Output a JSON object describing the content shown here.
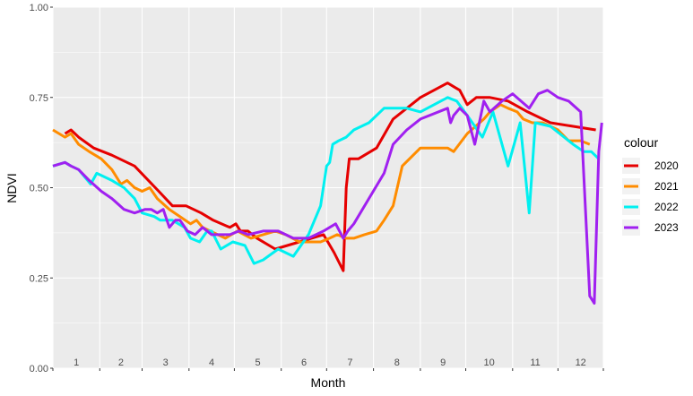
{
  "chart_data": {
    "type": "line",
    "xlabel": "Month",
    "ylabel": "NDVI",
    "xlim": [
      1,
      365
    ],
    "ylim": [
      0,
      1
    ],
    "yticks": [
      0.0,
      0.25,
      0.5,
      0.75,
      1.0
    ],
    "ytick_labels": [
      "0.00",
      "0.25",
      "0.50",
      "0.75",
      "1.00"
    ],
    "month_labels": [
      "1",
      "2",
      "3",
      "4",
      "5",
      "6",
      "7",
      "8",
      "9",
      "10",
      "11",
      "12"
    ],
    "legend_title": "colour",
    "legend_position": "right",
    "grid": true,
    "series": [
      {
        "name": "2020",
        "color": "#e60000",
        "x": [
          9,
          13,
          18,
          28,
          40,
          55,
          71,
          80,
          89,
          99,
          107,
          118,
          122,
          125,
          130,
          136,
          148,
          164,
          172,
          180,
          187,
          193,
          195,
          197,
          203,
          215,
          226,
          244,
          262,
          266,
          270,
          275,
          281,
          290,
          302,
          315,
          330,
          345,
          360
        ],
        "y": [
          0.65,
          0.66,
          0.64,
          0.61,
          0.59,
          0.56,
          0.49,
          0.45,
          0.45,
          0.43,
          0.41,
          0.39,
          0.4,
          0.38,
          0.38,
          0.36,
          0.33,
          0.35,
          0.36,
          0.37,
          0.32,
          0.27,
          0.5,
          0.58,
          0.58,
          0.61,
          0.69,
          0.75,
          0.79,
          0.78,
          0.77,
          0.73,
          0.75,
          0.75,
          0.74,
          0.71,
          0.68,
          0.67,
          0.66
        ]
      },
      {
        "name": "2021",
        "color": "#ff8c00",
        "x": [
          1,
          9,
          13,
          18,
          25,
          33,
          40,
          46,
          50,
          55,
          60,
          65,
          70,
          78,
          85,
          92,
          96,
          100,
          105,
          110,
          115,
          123,
          132,
          140,
          148,
          155,
          164,
          172,
          178,
          184,
          189,
          195,
          200,
          207,
          215,
          220,
          226,
          232,
          244,
          262,
          266,
          275,
          286,
          290,
          297,
          302,
          308,
          312,
          318,
          325,
          335,
          342,
          350,
          356
        ],
        "y": [
          0.66,
          0.64,
          0.65,
          0.62,
          0.6,
          0.58,
          0.55,
          0.51,
          0.52,
          0.5,
          0.49,
          0.5,
          0.47,
          0.44,
          0.42,
          0.4,
          0.41,
          0.39,
          0.38,
          0.37,
          0.36,
          0.38,
          0.36,
          0.37,
          0.38,
          0.37,
          0.35,
          0.35,
          0.35,
          0.36,
          0.37,
          0.36,
          0.36,
          0.37,
          0.38,
          0.41,
          0.45,
          0.56,
          0.61,
          0.61,
          0.6,
          0.65,
          0.69,
          0.71,
          0.73,
          0.72,
          0.71,
          0.69,
          0.68,
          0.68,
          0.66,
          0.63,
          0.63,
          0.62
        ]
      },
      {
        "name": "2022",
        "color": "#00f0f0",
        "x": [
          1,
          9,
          13,
          18,
          22,
          26,
          30,
          40,
          48,
          55,
          60,
          68,
          72,
          80,
          88,
          92,
          98,
          103,
          106,
          112,
          120,
          128,
          134,
          140,
          150,
          160,
          170,
          178,
          182,
          184,
          186,
          190,
          195,
          200,
          210,
          220,
          226,
          235,
          244,
          262,
          268,
          275,
          285,
          292,
          302,
          310,
          316,
          320,
          330,
          345,
          352,
          357,
          362
        ],
        "y": [
          0.56,
          0.57,
          0.56,
          0.55,
          0.53,
          0.51,
          0.54,
          0.52,
          0.5,
          0.47,
          0.43,
          0.42,
          0.41,
          0.41,
          0.39,
          0.36,
          0.35,
          0.38,
          0.38,
          0.33,
          0.35,
          0.34,
          0.29,
          0.3,
          0.33,
          0.31,
          0.37,
          0.45,
          0.56,
          0.57,
          0.62,
          0.63,
          0.64,
          0.66,
          0.68,
          0.72,
          0.72,
          0.72,
          0.71,
          0.75,
          0.74,
          0.7,
          0.64,
          0.71,
          0.56,
          0.68,
          0.43,
          0.68,
          0.67,
          0.62,
          0.6,
          0.6,
          0.58
        ]
      },
      {
        "name": "2023",
        "color": "#a020f0",
        "x": [
          1,
          9,
          13,
          18,
          25,
          33,
          40,
          48,
          55,
          62,
          66,
          70,
          74,
          78,
          82,
          85,
          90,
          95,
          100,
          106,
          112,
          118,
          124,
          130,
          140,
          150,
          160,
          170,
          180,
          188,
          193,
          196,
          200,
          210,
          220,
          226,
          235,
          244,
          262,
          264,
          266,
          270,
          275,
          280,
          286,
          290,
          298,
          305,
          316,
          322,
          328,
          335,
          342,
          350,
          356,
          359,
          362,
          364
        ],
        "y": [
          0.56,
          0.57,
          0.56,
          0.55,
          0.52,
          0.49,
          0.47,
          0.44,
          0.43,
          0.44,
          0.44,
          0.43,
          0.44,
          0.39,
          0.41,
          0.41,
          0.38,
          0.37,
          0.39,
          0.37,
          0.37,
          0.37,
          0.38,
          0.37,
          0.38,
          0.38,
          0.36,
          0.36,
          0.38,
          0.4,
          0.36,
          0.38,
          0.4,
          0.47,
          0.54,
          0.62,
          0.66,
          0.69,
          0.72,
          0.68,
          0.7,
          0.72,
          0.7,
          0.62,
          0.74,
          0.71,
          0.74,
          0.76,
          0.72,
          0.76,
          0.77,
          0.75,
          0.74,
          0.71,
          0.2,
          0.18,
          0.6,
          0.68
        ]
      }
    ]
  }
}
